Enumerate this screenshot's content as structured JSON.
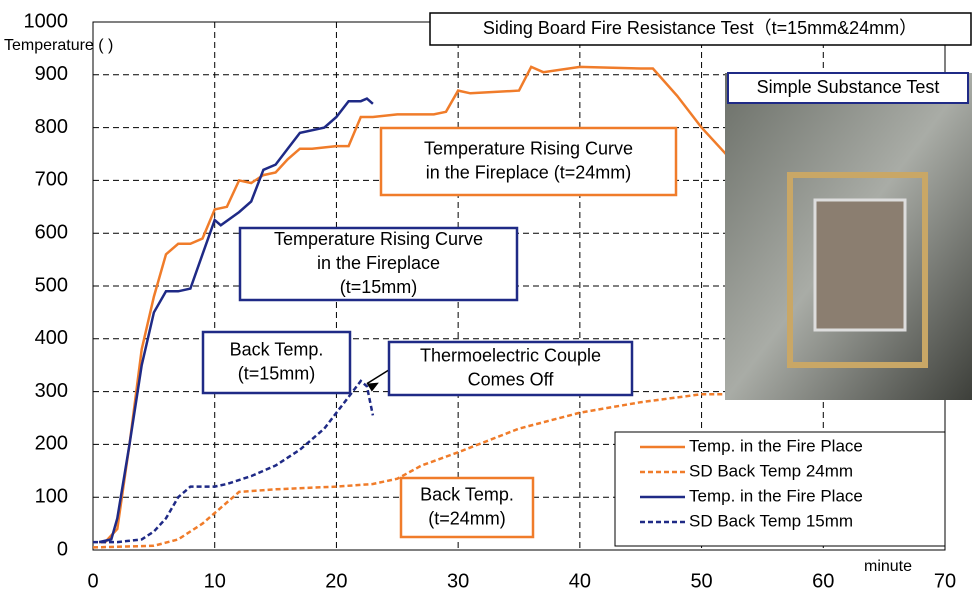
{
  "chart_data": {
    "type": "line",
    "title": "Siding Board Fire Resistance Test（t=15mm&24mm）",
    "xlabel": "minute",
    "ylabel": "Temperature (  )",
    "xlim": [
      0,
      70
    ],
    "xticks": [
      0,
      10,
      20,
      30,
      40,
      50,
      60,
      70
    ],
    "ylim": [
      0,
      1000
    ],
    "yticks": [
      0,
      100,
      200,
      300,
      400,
      500,
      600,
      700,
      800,
      900,
      1000
    ],
    "grid": true,
    "legend": "lower right",
    "series": [
      {
        "name": "Temp. in the Fire Place",
        "color": "#f07c2a",
        "dash": false,
        "x": [
          0.5,
          1,
          2,
          3,
          4,
          5,
          6,
          7,
          8,
          9,
          10,
          11,
          12,
          13,
          14,
          15,
          16,
          17,
          18,
          20,
          21,
          22,
          23,
          25,
          28,
          29,
          30,
          31,
          35,
          36,
          37,
          40,
          45,
          46,
          48,
          50,
          52,
          53
        ],
        "values": [
          15,
          15,
          40,
          200,
          380,
          480,
          560,
          580,
          580,
          590,
          645,
          650,
          700,
          695,
          710,
          715,
          740,
          760,
          760,
          765,
          765,
          820,
          820,
          825,
          825,
          830,
          870,
          865,
          870,
          915,
          905,
          915,
          912,
          912,
          860,
          800,
          750,
          720
        ]
      },
      {
        "name": "SD Back Temp 24mm",
        "color": "#f07c2a",
        "dash": true,
        "x": [
          0,
          5,
          7,
          9,
          11,
          12,
          15,
          20,
          23,
          25,
          27,
          30,
          35,
          40,
          45,
          50,
          52
        ],
        "values": [
          5,
          8,
          20,
          50,
          90,
          110,
          115,
          120,
          125,
          135,
          160,
          185,
          230,
          260,
          280,
          295,
          295
        ]
      },
      {
        "name": "Temp. in the Fire Place",
        "color": "#1f2a86",
        "dash": false,
        "x": [
          0.5,
          1.5,
          2,
          3,
          4,
          5,
          6,
          7,
          8,
          9,
          10,
          10.5,
          12,
          13,
          14,
          15,
          16,
          17,
          19,
          20,
          21,
          22,
          22.5,
          23
        ],
        "values": [
          15,
          20,
          60,
          200,
          350,
          450,
          490,
          490,
          495,
          560,
          625,
          615,
          640,
          660,
          720,
          730,
          760,
          790,
          800,
          820,
          850,
          850,
          855,
          845
        ]
      },
      {
        "name": "SD Back Temp 15mm",
        "color": "#1f2a86",
        "dash": true,
        "x": [
          0,
          2,
          4,
          5,
          6,
          7,
          8,
          10,
          11,
          13,
          15,
          17,
          19,
          21,
          22,
          22.5,
          23
        ],
        "values": [
          15,
          15,
          20,
          35,
          60,
          100,
          120,
          120,
          125,
          140,
          160,
          190,
          230,
          290,
          320,
          310,
          255
        ]
      }
    ],
    "annotations": [
      {
        "lines": [
          "Temperature Rising Curve",
          "in the Fireplace (t=24mm)"
        ]
      },
      {
        "lines": [
          "Temperature Rising Curve",
          "in the Fireplace",
          "(t=15mm)"
        ]
      },
      {
        "lines": [
          "Back Temp.",
          "(t=15mm)"
        ]
      },
      {
        "lines": [
          "Thermoelectric Couple",
          "Comes Off"
        ]
      },
      {
        "lines": [
          "Back Temp.",
          "(t=24mm)"
        ]
      }
    ],
    "photo_label": "Simple Substance Test"
  }
}
